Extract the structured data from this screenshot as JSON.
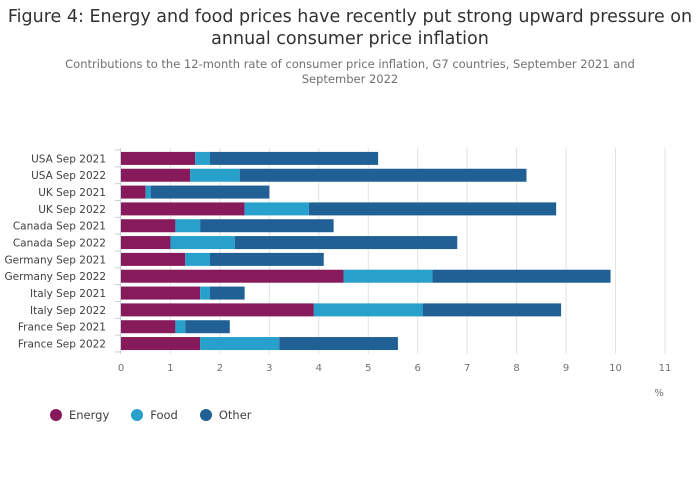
{
  "header": {
    "title": "Figure 4: Energy and food prices have recently put strong upward pressure on annual consumer price inflation",
    "subtitle": "Contributions to the 12-month rate of consumer price inflation, G7 countries, September 2021 and September 2022"
  },
  "chart_data": {
    "type": "bar",
    "orientation": "horizontal",
    "stacked": true,
    "title": "Figure 4: Energy and food prices have recently put strong upward pressure on annual consumer price inflation",
    "subtitle": "Contributions to the 12-month rate of consumer price inflation, G7 countries, September 2021 and September 2022",
    "xlabel": "%",
    "ylabel": "",
    "xlim": [
      0,
      11
    ],
    "xticks": [
      0,
      1,
      2,
      3,
      4,
      5,
      6,
      7,
      8,
      9,
      10,
      11
    ],
    "grid": true,
    "legend_position": "bottom-left",
    "categories": [
      "USA Sep 2021",
      "USA Sep 2022",
      "UK Sep 2021",
      "UK Sep 2022",
      "Canada Sep 2021",
      "Canada Sep 2022",
      "Germany Sep 2021",
      "Germany Sep 2022",
      "Italy Sep 2021",
      "Italy Sep 2022",
      "France Sep 2021",
      "France Sep 2022"
    ],
    "series": [
      {
        "name": "Energy",
        "color": "#871a5b",
        "values": [
          1.5,
          1.4,
          0.5,
          2.5,
          1.1,
          1.0,
          1.3,
          4.5,
          1.6,
          3.9,
          1.1,
          1.6
        ]
      },
      {
        "name": "Food",
        "color": "#27a0cc",
        "values": [
          0.3,
          1.0,
          0.1,
          1.3,
          0.5,
          1.3,
          0.5,
          1.8,
          0.2,
          2.2,
          0.2,
          1.6
        ]
      },
      {
        "name": "Other",
        "color": "#206095",
        "values": [
          3.4,
          5.8,
          2.4,
          5.0,
          2.7,
          4.5,
          2.3,
          3.6,
          0.7,
          2.8,
          0.9,
          2.4
        ]
      }
    ]
  }
}
